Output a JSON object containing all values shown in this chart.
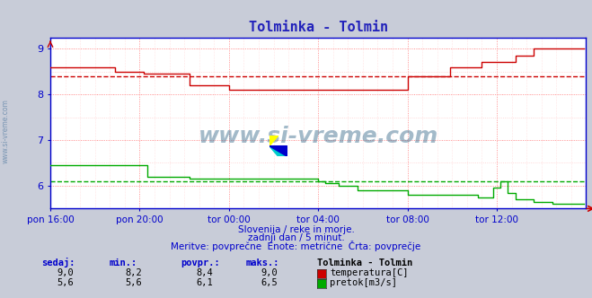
{
  "title": "Tolminka - Tolmin",
  "title_color": "#2222bb",
  "bg_color": "#c8ccd8",
  "plot_bg_color": "#ffffff",
  "grid_color_major": "#ff9999",
  "grid_color_minor": "#ffcccc",
  "axis_color": "#0000cc",
  "ylim": [
    5.5,
    9.25
  ],
  "yticks": [
    6,
    7,
    8,
    9
  ],
  "x_labels": [
    "pon 16:00",
    "pon 20:00",
    "tor 00:00",
    "tor 04:00",
    "tor 08:00",
    "tor 12:00"
  ],
  "x_ticks_pos": [
    0,
    48,
    96,
    144,
    192,
    240
  ],
  "total_points": 288,
  "temp_avg": 8.4,
  "flow_avg": 6.1,
  "watermark": "www.si-vreme.com",
  "subtitle1": "Slovenija / reke in morje.",
  "subtitle2": "zadnji dan / 5 minut.",
  "subtitle3": "Meritve: povprečne  Enote: metrične  Črta: povprečje",
  "legend_title": "Tolminka - Tolmin",
  "legend_items": [
    {
      "label": "temperatura[C]",
      "color": "#cc0000"
    },
    {
      "label": "pretok[m3/s]",
      "color": "#00aa00"
    }
  ],
  "table_headers": [
    "sedaj:",
    "min.:",
    "povpr.:",
    "maks.:"
  ],
  "table_rows": [
    {
      "sedaj": "9,0",
      "min": "8,2",
      "povpr": "8,4",
      "maks": "9,0"
    },
    {
      "sedaj": "5,6",
      "min": "5,6",
      "povpr": "6,1",
      "maks": "6,5"
    }
  ],
  "temp_color": "#cc0000",
  "flow_color": "#00aa00",
  "left_label": "www.si-vreme.com",
  "arrow_color": "#cc0000"
}
